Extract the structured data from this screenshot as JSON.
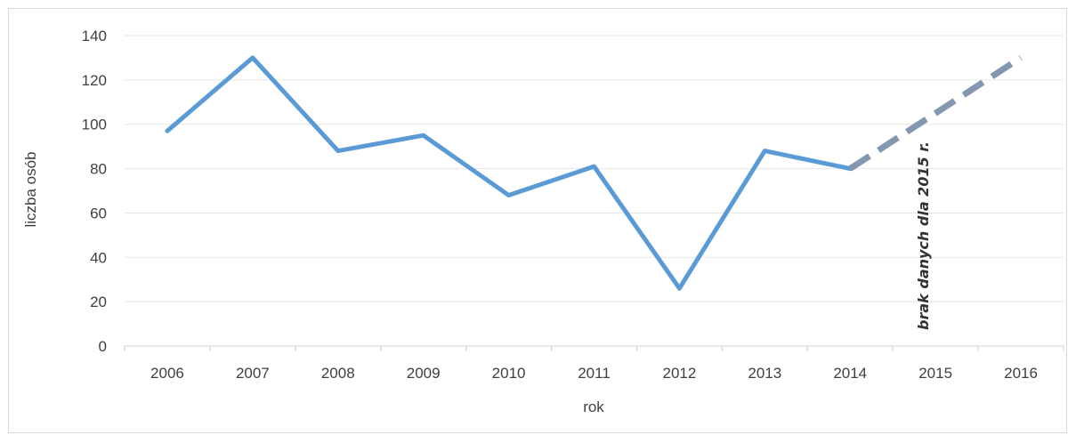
{
  "chart_data": {
    "type": "line",
    "title": "",
    "xlabel": "rok",
    "ylabel": "liczba osób",
    "categories": [
      "2006",
      "2007",
      "2008",
      "2009",
      "2010",
      "2011",
      "2012",
      "2013",
      "2014",
      "2015",
      "2016"
    ],
    "ylim": [
      0,
      140
    ],
    "yticks": [
      0,
      20,
      40,
      60,
      80,
      100,
      120,
      140
    ],
    "grid": true,
    "legend": "none",
    "series": [
      {
        "values": [
          97,
          130,
          88,
          95,
          68,
          81,
          26,
          88,
          80,
          null,
          null
        ],
        "style": "solid",
        "color": "#5b9bd5"
      },
      {
        "values": [
          null,
          null,
          null,
          null,
          null,
          null,
          null,
          null,
          80,
          105,
          130
        ],
        "style": "dashed",
        "color": "#8497b0"
      }
    ],
    "annotations": [
      {
        "text": "brak danych dla 2015 r.",
        "x": "2015",
        "orientation": "vertical"
      }
    ]
  }
}
